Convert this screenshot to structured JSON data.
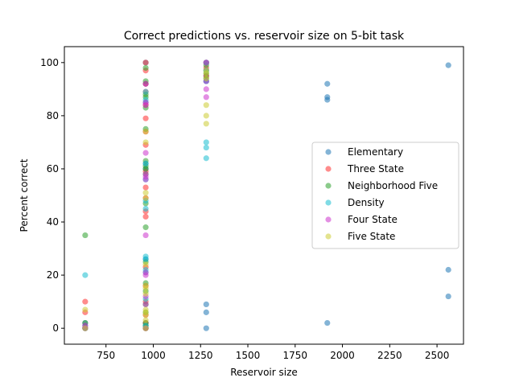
{
  "chart_data": {
    "type": "scatter",
    "title": "Correct predictions vs. reservoir size on 5-bit task",
    "xlabel": "Reservoir size",
    "ylabel": "Percent correct",
    "xlim": [
      530,
      2640
    ],
    "ylim": [
      -6,
      106
    ],
    "xticks": [
      750,
      1000,
      1250,
      1500,
      1750,
      2000,
      2250,
      2500
    ],
    "yticks": [
      0,
      20,
      40,
      60,
      80,
      100
    ],
    "grid": false,
    "legend_position": "center-right",
    "series": [
      {
        "name": "Elementary",
        "color": "#1f77b4",
        "points": [
          [
            640,
            0
          ],
          [
            640,
            1
          ],
          [
            640,
            2
          ],
          [
            960,
            0
          ],
          [
            960,
            1
          ],
          [
            960,
            2
          ],
          [
            960,
            26
          ],
          [
            960,
            60
          ],
          [
            960,
            62
          ],
          [
            960,
            85
          ],
          [
            960,
            92
          ],
          [
            960,
            100
          ],
          [
            1280,
            0
          ],
          [
            1280,
            6
          ],
          [
            1280,
            9
          ],
          [
            1280,
            93
          ],
          [
            1280,
            95
          ],
          [
            1280,
            97
          ],
          [
            1280,
            100
          ],
          [
            1920,
            2
          ],
          [
            1920,
            86
          ],
          [
            1920,
            87
          ],
          [
            1920,
            92
          ],
          [
            2560,
            12
          ],
          [
            2560,
            22
          ],
          [
            2560,
            99
          ]
        ]
      },
      {
        "name": "Three State",
        "color": "#ff2d2d",
        "points": [
          [
            640,
            0
          ],
          [
            640,
            6
          ],
          [
            640,
            10
          ],
          [
            960,
            0
          ],
          [
            960,
            2
          ],
          [
            960,
            5
          ],
          [
            960,
            10
          ],
          [
            960,
            16
          ],
          [
            960,
            23
          ],
          [
            960,
            42
          ],
          [
            960,
            44
          ],
          [
            960,
            49
          ],
          [
            960,
            53
          ],
          [
            960,
            59
          ],
          [
            960,
            69
          ],
          [
            960,
            74
          ],
          [
            960,
            79
          ],
          [
            960,
            84
          ],
          [
            960,
            89
          ],
          [
            960,
            92
          ],
          [
            960,
            97
          ],
          [
            960,
            100
          ],
          [
            1280,
            95
          ],
          [
            1280,
            98
          ],
          [
            1280,
            100
          ]
        ]
      },
      {
        "name": "Neighborhood Five",
        "color": "#2ca02c",
        "points": [
          [
            640,
            0
          ],
          [
            640,
            2
          ],
          [
            640,
            35
          ],
          [
            960,
            0
          ],
          [
            960,
            1
          ],
          [
            960,
            2
          ],
          [
            960,
            6
          ],
          [
            960,
            9
          ],
          [
            960,
            14
          ],
          [
            960,
            17
          ],
          [
            960,
            25
          ],
          [
            960,
            38
          ],
          [
            960,
            47
          ],
          [
            960,
            58
          ],
          [
            960,
            60
          ],
          [
            960,
            61
          ],
          [
            960,
            63
          ],
          [
            960,
            75
          ],
          [
            960,
            83
          ],
          [
            960,
            87
          ],
          [
            960,
            88
          ],
          [
            960,
            93
          ],
          [
            960,
            98
          ],
          [
            1280,
            94
          ],
          [
            1280,
            96
          ],
          [
            1280,
            99
          ]
        ]
      },
      {
        "name": "Density",
        "color": "#17becf",
        "points": [
          [
            640,
            0
          ],
          [
            640,
            20
          ],
          [
            960,
            1
          ],
          [
            960,
            11
          ],
          [
            960,
            21
          ],
          [
            960,
            22
          ],
          [
            960,
            26
          ],
          [
            960,
            27
          ],
          [
            960,
            45
          ],
          [
            960,
            48
          ],
          [
            960,
            56
          ],
          [
            960,
            62
          ],
          [
            960,
            86
          ],
          [
            960,
            89
          ],
          [
            1280,
            64
          ],
          [
            1280,
            68
          ],
          [
            1280,
            70
          ],
          [
            1280,
            93
          ],
          [
            1280,
            97
          ],
          [
            1280,
            100
          ]
        ]
      },
      {
        "name": "Four State",
        "color": "#cc33cc",
        "points": [
          [
            640,
            0
          ],
          [
            640,
            1
          ],
          [
            960,
            0
          ],
          [
            960,
            9
          ],
          [
            960,
            12
          ],
          [
            960,
            20
          ],
          [
            960,
            21
          ],
          [
            960,
            35
          ],
          [
            960,
            56
          ],
          [
            960,
            57
          ],
          [
            960,
            58
          ],
          [
            960,
            66
          ],
          [
            960,
            84
          ],
          [
            960,
            85
          ],
          [
            960,
            92
          ],
          [
            1280,
            87
          ],
          [
            1280,
            90
          ],
          [
            1280,
            93
          ],
          [
            1280,
            100
          ]
        ]
      },
      {
        "name": "Five State",
        "color": "#cccc33",
        "points": [
          [
            640,
            0
          ],
          [
            640,
            7
          ],
          [
            960,
            0
          ],
          [
            960,
            3
          ],
          [
            960,
            5
          ],
          [
            960,
            6
          ],
          [
            960,
            7
          ],
          [
            960,
            13
          ],
          [
            960,
            15
          ],
          [
            960,
            16
          ],
          [
            960,
            24
          ],
          [
            960,
            49
          ],
          [
            960,
            51
          ],
          [
            960,
            70
          ],
          [
            960,
            74
          ],
          [
            1280,
            77
          ],
          [
            1280,
            80
          ],
          [
            1280,
            84
          ],
          [
            1280,
            94
          ],
          [
            1280,
            96
          ],
          [
            1280,
            97
          ]
        ]
      }
    ]
  }
}
